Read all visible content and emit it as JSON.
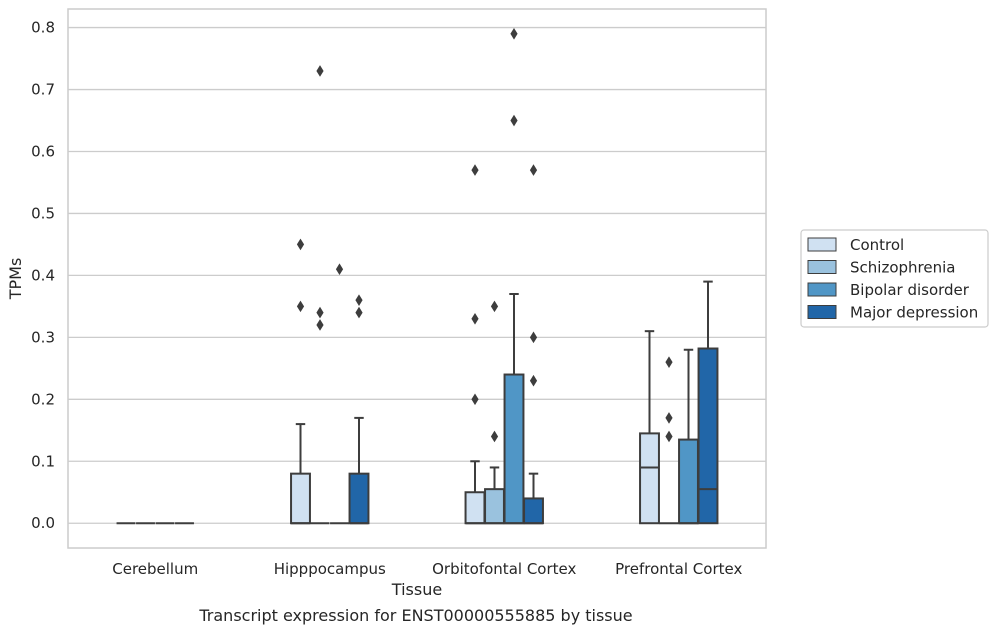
{
  "caption": "Transcript expression for ENST00000555885 by tissue",
  "chart_data": {
    "type": "box",
    "title": "",
    "xlabel": "Tissue",
    "ylabel": "TPMs",
    "ylim": [
      -0.04,
      0.83
    ],
    "yticks": [
      0.0,
      0.1,
      0.2,
      0.3,
      0.4,
      0.5,
      0.6,
      0.7,
      0.8
    ],
    "ytick_labels": [
      "0.0",
      "0.1",
      "0.2",
      "0.3",
      "0.4",
      "0.5",
      "0.6",
      "0.7",
      "0.8"
    ],
    "grid": "horizontal",
    "legend_position": "right",
    "categories": [
      "Cerebellum",
      "Hipppocampus",
      "Orbitofontal Cortex",
      "Prefrontal Cortex"
    ],
    "series": [
      {
        "name": "Control",
        "color": "#d0e1f2",
        "boxes": [
          {
            "q1": 0,
            "median": 0,
            "q3": 0,
            "whisker_low": 0,
            "whisker_high": 0,
            "outliers": []
          },
          {
            "q1": 0,
            "median": 0,
            "q3": 0.08,
            "whisker_low": 0,
            "whisker_high": 0.16,
            "outliers": [
              0.35,
              0.45
            ]
          },
          {
            "q1": 0,
            "median": 0,
            "q3": 0.05,
            "whisker_low": 0,
            "whisker_high": 0.1,
            "outliers": [
              0.2,
              0.33,
              0.57
            ]
          },
          {
            "q1": 0,
            "median": 0.09,
            "q3": 0.145,
            "whisker_low": 0,
            "whisker_high": 0.31,
            "outliers": []
          }
        ]
      },
      {
        "name": "Schizophrenia",
        "color": "#9ac2de",
        "boxes": [
          {
            "q1": 0,
            "median": 0,
            "q3": 0,
            "whisker_low": 0,
            "whisker_high": 0,
            "outliers": []
          },
          {
            "q1": 0,
            "median": 0,
            "q3": 0,
            "whisker_low": 0,
            "whisker_high": 0,
            "outliers": [
              0.32,
              0.34,
              0.73
            ]
          },
          {
            "q1": 0,
            "median": 0,
            "q3": 0.055,
            "whisker_low": 0,
            "whisker_high": 0.09,
            "outliers": [
              0.14,
              0.35
            ]
          },
          {
            "q1": 0,
            "median": 0,
            "q3": 0,
            "whisker_low": 0,
            "whisker_high": 0,
            "outliers": [
              0.14,
              0.17,
              0.26
            ]
          }
        ]
      },
      {
        "name": "Bipolar disorder",
        "color": "#5096c6",
        "boxes": [
          {
            "q1": 0,
            "median": 0,
            "q3": 0,
            "whisker_low": 0,
            "whisker_high": 0,
            "outliers": []
          },
          {
            "q1": 0,
            "median": 0,
            "q3": 0,
            "whisker_low": 0,
            "whisker_high": 0,
            "outliers": [
              0.41
            ]
          },
          {
            "q1": 0,
            "median": 0,
            "q3": 0.24,
            "whisker_low": 0,
            "whisker_high": 0.37,
            "outliers": [
              0.65,
              0.79
            ]
          },
          {
            "q1": 0,
            "median": 0,
            "q3": 0.135,
            "whisker_low": 0,
            "whisker_high": 0.28,
            "outliers": []
          }
        ]
      },
      {
        "name": "Major depression",
        "color": "#2166a8",
        "boxes": [
          {
            "q1": 0,
            "median": 0,
            "q3": 0,
            "whisker_low": 0,
            "whisker_high": 0,
            "outliers": []
          },
          {
            "q1": 0,
            "median": 0,
            "q3": 0.08,
            "whisker_low": 0,
            "whisker_high": 0.17,
            "outliers": [
              0.34,
              0.36
            ]
          },
          {
            "q1": 0,
            "median": 0,
            "q3": 0.04,
            "whisker_low": 0,
            "whisker_high": 0.08,
            "outliers": [
              0.23,
              0.3,
              0.57
            ]
          },
          {
            "q1": 0,
            "median": 0.055,
            "q3": 0.282,
            "whisker_low": 0,
            "whisker_high": 0.39,
            "outliers": []
          }
        ]
      }
    ]
  }
}
